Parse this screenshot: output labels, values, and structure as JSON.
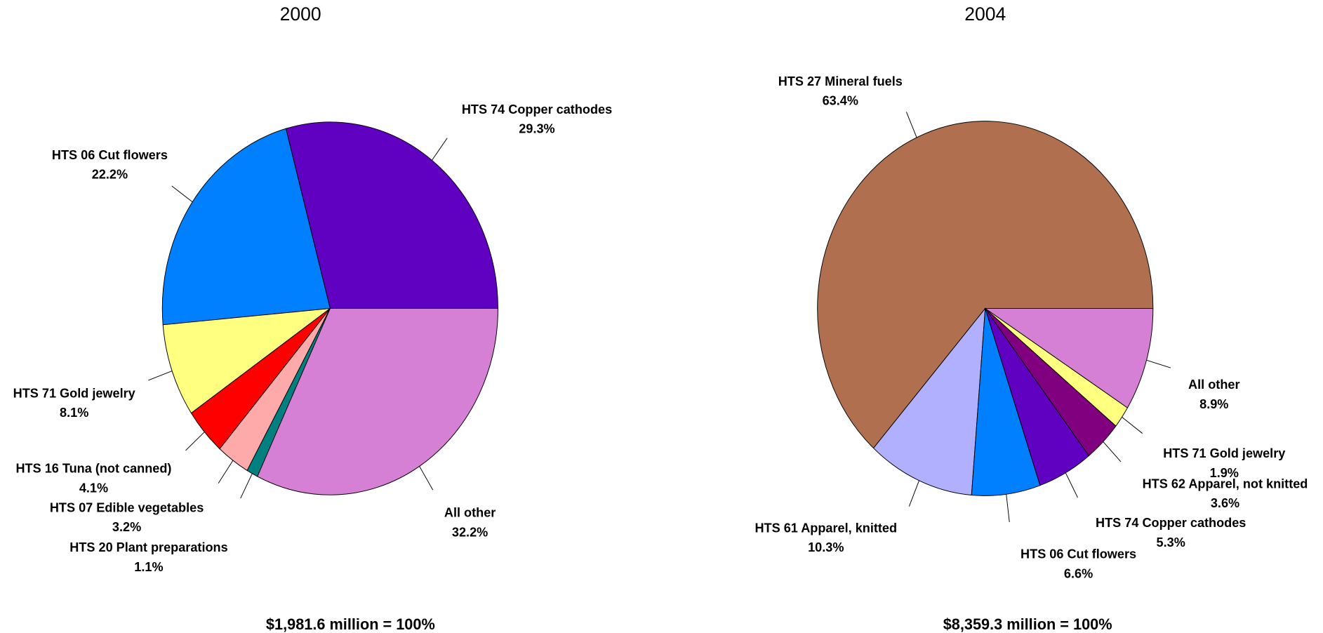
{
  "chart_data": [
    {
      "type": "pie",
      "title": "2000",
      "footer": "$1,981.6 million = 100%",
      "categories": [
        "HTS 74 Copper cathodes",
        "HTS 06 Cut flowers",
        "HTS 71 Gold jewelry",
        "HTS 16 Tuna (not canned)",
        "HTS 07 Edible vegetables",
        "HTS 20 Plant preparations",
        "All other"
      ],
      "values": [
        29.3,
        22.2,
        8.1,
        4.1,
        3.2,
        1.1,
        32.2
      ],
      "value_labels": [
        "29.3%",
        "22.2%",
        "8.1%",
        "4.1%",
        "3.2%",
        "1.1%",
        "32.2%"
      ],
      "colors": [
        "#6000c0",
        "#0080ff",
        "#ffff80",
        "#ff0000",
        "#ffaaaa",
        "#008080",
        "#d580d5"
      ]
    },
    {
      "type": "pie",
      "title": "2004",
      "footer": "$8,359.3 million = 100%",
      "categories": [
        "HTS 27 Mineral fuels",
        "HTS 61 Apparel, knitted",
        "HTS 06 Cut flowers",
        "HTS 74 Copper cathodes",
        "HTS 62 Apparel, not knitted",
        "HTS 71 Gold jewelry",
        "All other"
      ],
      "values": [
        63.4,
        10.3,
        6.6,
        5.3,
        3.6,
        1.9,
        8.9
      ],
      "value_labels": [
        "63.4%",
        "10.3%",
        "6.6%",
        "5.3%",
        "3.6%",
        "1.9%",
        "8.9%"
      ],
      "colors": [
        "#b07050",
        "#b0b0ff",
        "#0080ff",
        "#6000c0",
        "#800080",
        "#ffff80",
        "#d580d5"
      ]
    }
  ]
}
